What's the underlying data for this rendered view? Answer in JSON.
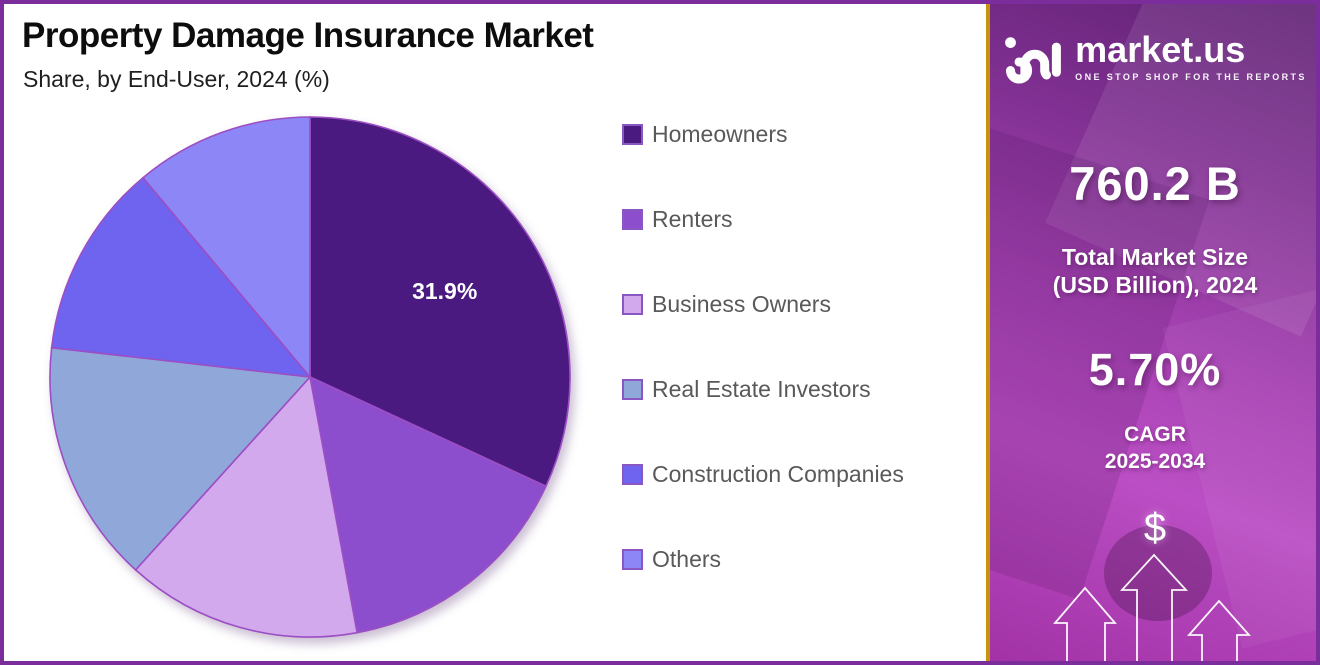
{
  "page": {
    "title": "Property Damage Insurance Market",
    "subtitle": "Share, by End-User, 2024 (%)"
  },
  "chart_data": {
    "type": "pie",
    "title": "Property Damage Insurance Market",
    "subtitle": "Share, by End-User, 2024 (%)",
    "unit": "percent share",
    "start_angle_deg": 0,
    "direction": "clockwise",
    "legend_position": "right",
    "labels": [
      "Homeowners",
      "Renters",
      "Business Owners",
      "Real Estate Investors",
      "Construction Companies",
      "Others"
    ],
    "values": [
      31.9,
      15.2,
      14.6,
      15.1,
      12.1,
      11.1
    ],
    "value_labels": [
      "31.9%",
      "",
      "",
      "",
      "",
      ""
    ],
    "colors": [
      "#4a1a80",
      "#8c4ecd",
      "#d2a9ec",
      "#90a7da",
      "#6f64ef",
      "#8c86f6"
    ],
    "slice_stroke": "#9c4ec4"
  },
  "legend": {
    "swatch_border": "#8a56c2",
    "text_color": "#595959"
  },
  "sidebar": {
    "logo_text": "market.us",
    "logo_tagline": "ONE STOP SHOP FOR THE REPORTS",
    "market_size_value": "760.2 B",
    "market_size_label_line1": "Total Market Size",
    "market_size_label_line2": "(USD Billion), 2024",
    "cagr_value": "5.70%",
    "cagr_label_line1": "CAGR",
    "cagr_label_line2": "2025-2034",
    "dollar_symbol": "$"
  },
  "theme": {
    "outer_border": "#7b2d9b",
    "panel_border": "#c9920e",
    "panel_gradient_top": "#5f2173",
    "panel_gradient_mid": "#bb4ec4",
    "panel_gradient_bottom": "#a232a6",
    "title_color": "#0d0d0d",
    "pie_label_color": "#ffffff"
  }
}
